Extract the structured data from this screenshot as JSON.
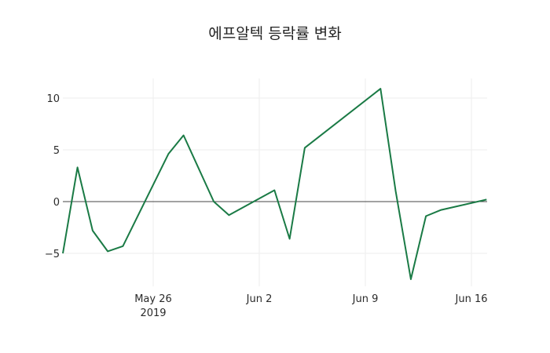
{
  "title": "에프알텍 등락률 변화",
  "chart_data": {
    "type": "line",
    "title": "에프알텍 등락률 변화",
    "xlabel": "",
    "ylabel": "",
    "x": [
      "2019-05-20",
      "2019-05-21",
      "2019-05-22",
      "2019-05-23",
      "2019-05-24",
      "2019-05-27",
      "2019-05-28",
      "2019-05-30",
      "2019-05-31",
      "2019-06-03",
      "2019-06-04",
      "2019-06-05",
      "2019-06-10",
      "2019-06-11",
      "2019-06-12",
      "2019-06-13",
      "2019-06-14",
      "2019-06-17"
    ],
    "series": [
      {
        "name": "등락률",
        "color": "#1a7a45",
        "values": [
          -5.0,
          3.3,
          -2.8,
          -4.8,
          -4.3,
          4.6,
          6.4,
          0.0,
          -1.3,
          1.1,
          -3.6,
          5.2,
          10.9,
          1.0,
          -7.5,
          -1.4,
          -0.8,
          0.2
        ]
      }
    ],
    "x_ticks": [
      {
        "label": "May 26",
        "sublabel": "2019",
        "date": "2019-05-26"
      },
      {
        "label": "Jun 2",
        "sublabel": "",
        "date": "2019-06-02"
      },
      {
        "label": "Jun 9",
        "sublabel": "",
        "date": "2019-06-09"
      },
      {
        "label": "Jun 16",
        "sublabel": "",
        "date": "2019-06-16"
      }
    ],
    "y_ticks": [
      -5,
      0,
      5,
      10
    ],
    "y_tick_labels": [
      "−5",
      "0",
      "5",
      "10"
    ],
    "ylim": [
      -8,
      12
    ],
    "grid": true,
    "zero_line": true,
    "legend": false
  }
}
